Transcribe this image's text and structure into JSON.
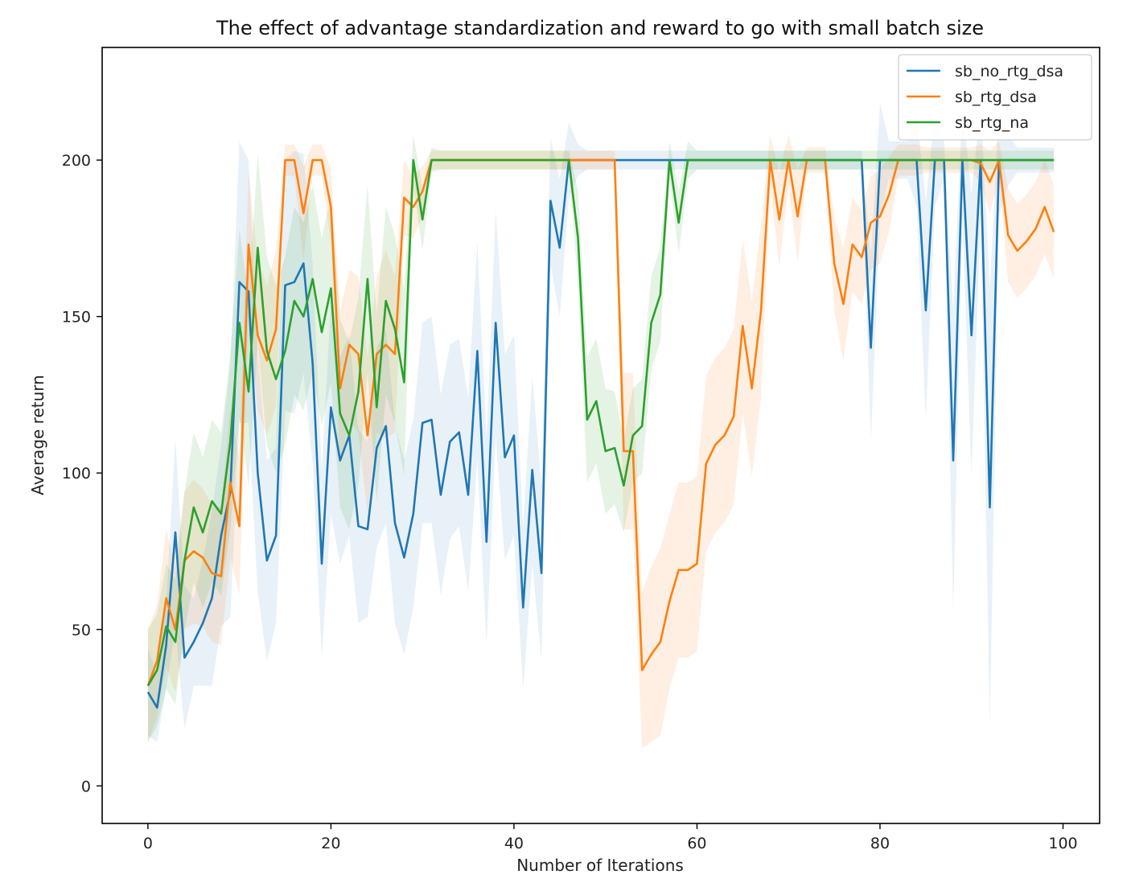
{
  "chart_data": {
    "type": "line",
    "title": "The effect of advantage standardization and reward to go with small batch size",
    "xlabel": "Number of Iterations",
    "ylabel": "Average return",
    "xlim": [
      -5,
      104
    ],
    "ylim": [
      -12,
      236
    ],
    "xticks": [
      0,
      20,
      40,
      60,
      80,
      100
    ],
    "yticks": [
      0,
      50,
      100,
      150,
      200
    ],
    "legend_position": "top-right",
    "grid": false,
    "series": [
      {
        "name": "sb_no_rtg_dsa",
        "color": "#1f77b4",
        "band_opacity": 0.1,
        "values": [
          30,
          25,
          45,
          81,
          41,
          46,
          52,
          60,
          80,
          94,
          161,
          158,
          100,
          72,
          80,
          160,
          161,
          167,
          135,
          71,
          121,
          104,
          112,
          83,
          82,
          108,
          115,
          84,
          73,
          87,
          116,
          117,
          93,
          110,
          113,
          93,
          139,
          78,
          148,
          105,
          112,
          57,
          101,
          68,
          187,
          172,
          200,
          200,
          200,
          200,
          200,
          200,
          200,
          200,
          200,
          200,
          200,
          200,
          200,
          200,
          200,
          200,
          200,
          200,
          200,
          200,
          200,
          200,
          200,
          200,
          200,
          200,
          200,
          200,
          200,
          200,
          200,
          200,
          200,
          140,
          200,
          200,
          200,
          200,
          200,
          152,
          200,
          200,
          104,
          200,
          144,
          200,
          89,
          200,
          200,
          200,
          200,
          200,
          200,
          200
        ],
        "band_half_width": [
          14,
          11,
          14,
          30,
          23,
          14,
          20,
          28,
          29,
          40,
          45,
          42,
          38,
          32,
          28,
          40,
          42,
          35,
          32,
          30,
          34,
          33,
          32,
          31,
          28,
          32,
          31,
          32,
          31,
          30,
          32,
          33,
          32,
          31,
          30,
          31,
          35,
          33,
          36,
          33,
          32,
          26,
          30,
          28,
          20,
          22,
          12,
          5,
          3,
          3,
          3,
          3,
          3,
          3,
          3,
          3,
          3,
          3,
          3,
          3,
          3,
          3,
          3,
          3,
          3,
          3,
          3,
          3,
          3,
          3,
          3,
          3,
          3,
          3,
          3,
          3,
          3,
          3,
          3,
          30,
          18,
          6,
          6,
          6,
          15,
          35,
          15,
          6,
          48,
          18,
          45,
          18,
          70,
          18,
          8,
          4,
          4,
          4,
          4,
          4
        ]
      },
      {
        "name": "sb_rtg_dsa",
        "color": "#ff7f0e",
        "band_opacity": 0.12,
        "values": [
          32,
          40,
          60,
          50,
          72,
          75,
          73,
          68,
          67,
          97,
          83,
          173,
          144,
          136,
          146,
          200,
          200,
          183,
          200,
          200,
          185,
          127,
          141,
          138,
          112,
          138,
          141,
          138,
          188,
          185,
          190,
          200,
          200,
          200,
          200,
          200,
          200,
          200,
          200,
          200,
          200,
          200,
          200,
          200,
          200,
          200,
          200,
          200,
          200,
          200,
          200,
          200,
          107,
          107,
          37,
          42,
          46,
          59,
          69,
          69,
          71,
          103,
          109,
          112,
          118,
          147,
          127,
          152,
          200,
          181,
          200,
          182,
          200,
          200,
          200,
          167,
          154,
          173,
          169,
          180,
          182,
          189,
          200,
          200,
          200,
          200,
          200,
          200,
          200,
          200,
          200,
          199,
          193,
          200,
          176,
          171,
          174,
          178,
          185,
          177
        ],
        "band_half_width": [
          18,
          18,
          22,
          20,
          22,
          23,
          22,
          22,
          22,
          24,
          22,
          23,
          24,
          24,
          25,
          5,
          5,
          15,
          5,
          5,
          12,
          25,
          24,
          25,
          25,
          25,
          30,
          25,
          12,
          10,
          8,
          3,
          3,
          3,
          3,
          3,
          3,
          3,
          3,
          3,
          3,
          3,
          3,
          3,
          3,
          3,
          3,
          3,
          3,
          3,
          3,
          3,
          25,
          25,
          25,
          28,
          30,
          28,
          28,
          28,
          28,
          28,
          28,
          28,
          28,
          28,
          28,
          28,
          8,
          15,
          8,
          15,
          4,
          4,
          4,
          15,
          18,
          15,
          15,
          15,
          15,
          12,
          5,
          5,
          5,
          4,
          4,
          4,
          4,
          4,
          4,
          6,
          10,
          6,
          15,
          15,
          15,
          15,
          15,
          15
        ]
      },
      {
        "name": "sb_rtg_na",
        "color": "#2ca02c",
        "band_opacity": 0.12,
        "values": [
          32,
          37,
          51,
          46,
          72,
          89,
          81,
          91,
          87,
          110,
          148,
          126,
          172,
          139,
          130,
          139,
          155,
          150,
          162,
          145,
          159,
          119,
          112,
          126,
          162,
          121,
          155,
          146,
          129,
          200,
          181,
          200,
          200,
          200,
          200,
          200,
          200,
          200,
          200,
          200,
          200,
          200,
          200,
          200,
          200,
          200,
          200,
          175,
          117,
          123,
          107,
          108,
          96,
          112,
          115,
          148,
          157,
          200,
          180,
          200,
          200,
          200,
          200,
          200,
          200,
          200,
          200,
          200,
          200,
          200,
          200,
          200,
          200,
          200,
          200,
          200,
          200,
          200,
          200,
          200,
          200,
          200,
          200,
          200,
          200,
          200,
          200,
          200,
          200,
          200,
          200,
          200,
          200,
          200,
          200,
          200,
          200,
          200,
          200,
          200
        ],
        "band_half_width": [
          18,
          18,
          20,
          20,
          22,
          24,
          24,
          26,
          26,
          28,
          30,
          30,
          30,
          30,
          30,
          30,
          30,
          30,
          30,
          30,
          30,
          30,
          30,
          30,
          30,
          30,
          30,
          30,
          30,
          8,
          10,
          4,
          3,
          3,
          3,
          3,
          3,
          3,
          3,
          3,
          3,
          3,
          3,
          3,
          3,
          3,
          3,
          15,
          20,
          20,
          20,
          18,
          15,
          15,
          15,
          15,
          15,
          6,
          10,
          6,
          3,
          3,
          3,
          3,
          3,
          3,
          3,
          3,
          3,
          3,
          3,
          3,
          3,
          3,
          3,
          3,
          3,
          3,
          3,
          3,
          3,
          3,
          3,
          3,
          3,
          3,
          3,
          3,
          3,
          3,
          3,
          3,
          3,
          3,
          3,
          3,
          3,
          3,
          3,
          3
        ]
      }
    ]
  }
}
